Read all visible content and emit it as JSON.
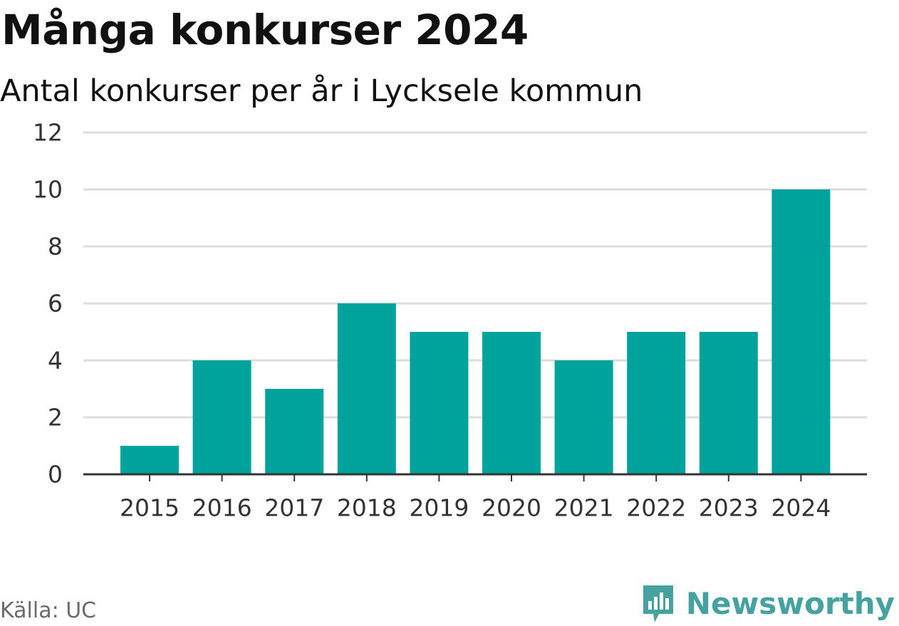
{
  "title": "Många konkurser 2024",
  "subtitle": "Antal konkurser per år i Lycksele kommun",
  "source": "Källa: UC",
  "brand": {
    "name": "Newsworthy",
    "icon": "newsworthy-logo-icon",
    "color": "#45a29e"
  },
  "colors": {
    "bar": "#00a39b",
    "grid": "#dddddd",
    "axis": "#333333"
  },
  "chart_data": {
    "type": "bar",
    "categories": [
      "2015",
      "2016",
      "2017",
      "2018",
      "2019",
      "2020",
      "2021",
      "2022",
      "2023",
      "2024"
    ],
    "values": [
      1,
      4,
      3,
      6,
      5,
      5,
      4,
      5,
      5,
      10
    ],
    "title": "Många konkurser 2024",
    "subtitle": "Antal konkurser per år i Lycksele kommun",
    "xlabel": "",
    "ylabel": "",
    "ylim": [
      0,
      12
    ],
    "yticks": [
      "0",
      "2",
      "4",
      "6",
      "8",
      "10",
      "12"
    ],
    "grid": true,
    "legend": "none"
  }
}
